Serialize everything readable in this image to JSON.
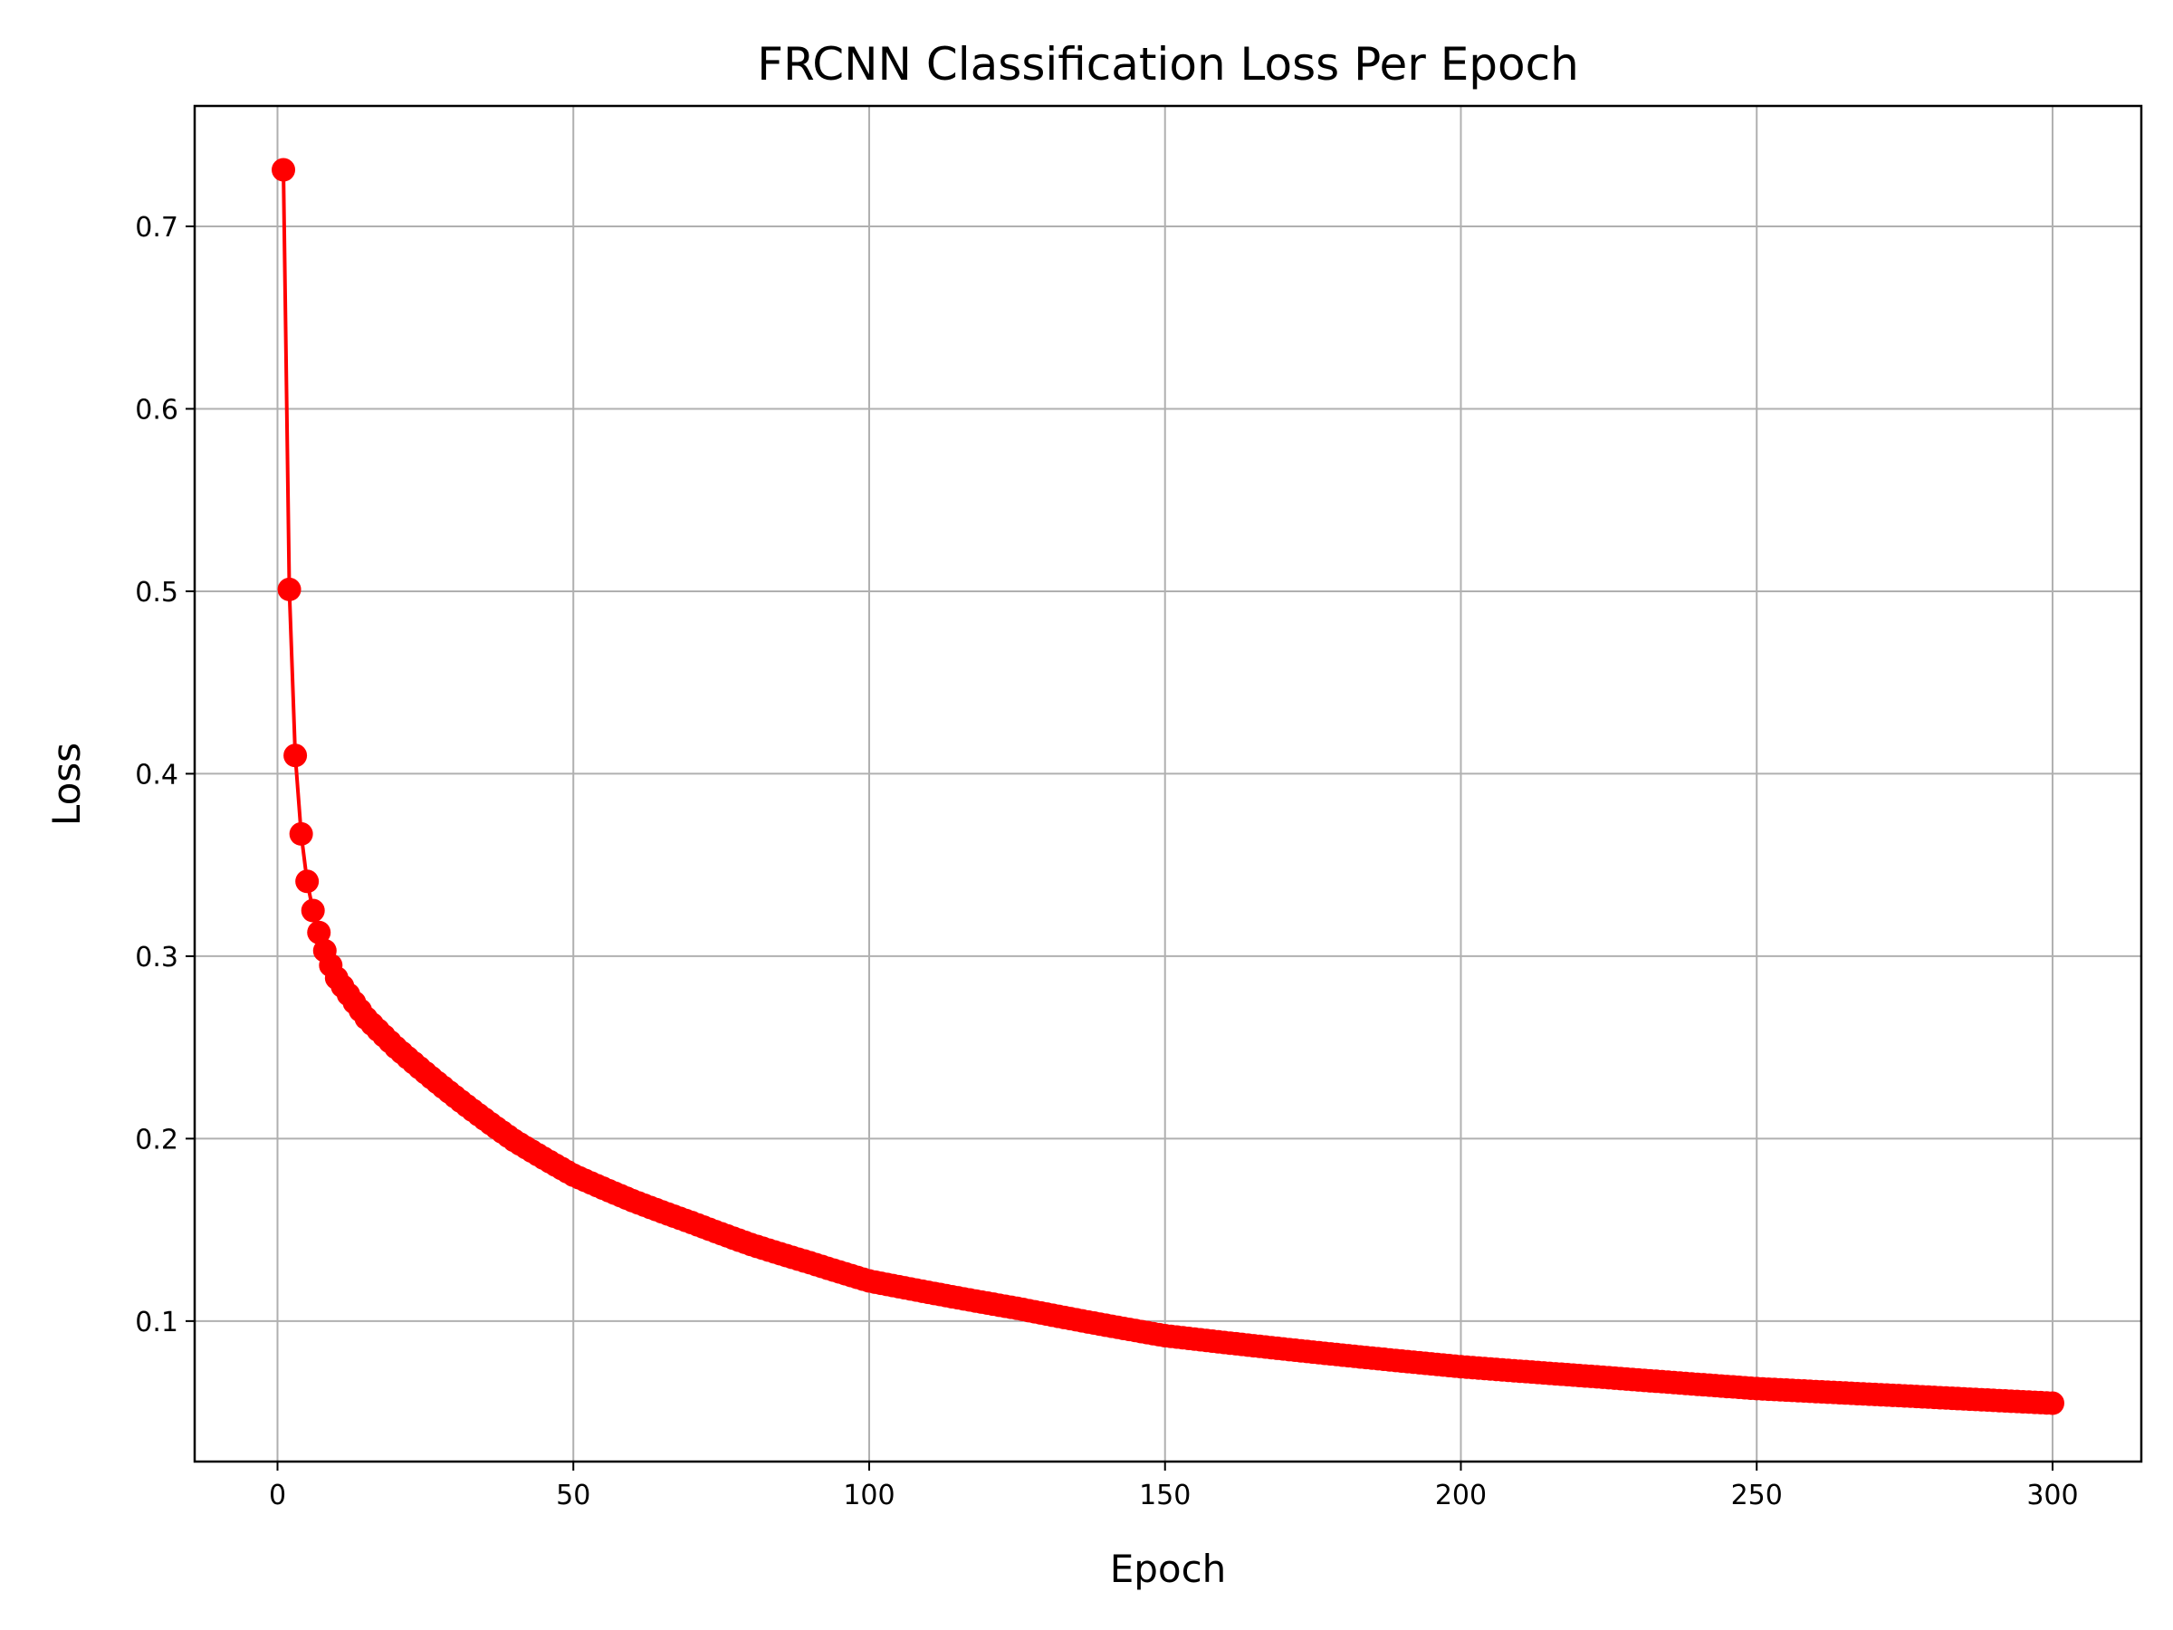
{
  "chart_data": {
    "type": "line",
    "title": "FRCNN Classification Loss Per Epoch",
    "xlabel": "Epoch",
    "ylabel": "Loss",
    "xlim": [
      -14,
      315
    ],
    "ylim": [
      0.023,
      0.766
    ],
    "xticks": [
      0,
      50,
      100,
      150,
      200,
      250,
      300
    ],
    "yticks": [
      0.1,
      0.2,
      0.3,
      0.4,
      0.5,
      0.6,
      0.7
    ],
    "grid": true,
    "legend": "none",
    "series_color": "#ff0000",
    "marker": "circle",
    "series": [
      {
        "x_start": 1,
        "x_end": 300,
        "points_explicit": [
          [
            1,
            0.731
          ],
          [
            2,
            0.501
          ],
          [
            3,
            0.41
          ],
          [
            4,
            0.367
          ],
          [
            5,
            0.341
          ],
          [
            6,
            0.325
          ],
          [
            7,
            0.313
          ],
          [
            8,
            0.303
          ],
          [
            9,
            0.295
          ],
          [
            10,
            0.288
          ]
        ],
        "points_anchor": [
          [
            10,
            0.288
          ],
          [
            15,
            0.266
          ],
          [
            20,
            0.25
          ],
          [
            30,
            0.223
          ],
          [
            40,
            0.199
          ],
          [
            50,
            0.18
          ],
          [
            60,
            0.166
          ],
          [
            70,
            0.154
          ],
          [
            80,
            0.142
          ],
          [
            90,
            0.132
          ],
          [
            100,
            0.122
          ],
          [
            125,
            0.107
          ],
          [
            150,
            0.092
          ],
          [
            175,
            0.083
          ],
          [
            200,
            0.075
          ],
          [
            225,
            0.069
          ],
          [
            250,
            0.063
          ],
          [
            275,
            0.059
          ],
          [
            300,
            0.055
          ]
        ]
      }
    ]
  }
}
